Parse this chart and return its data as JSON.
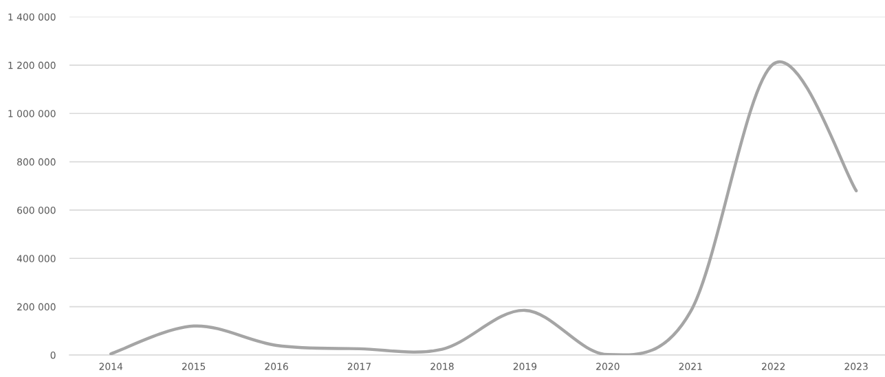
{
  "chart_data": {
    "type": "line",
    "categories": [
      "2014",
      "2015",
      "2016",
      "2017",
      "2018",
      "2019",
      "2020",
      "2021",
      "2022",
      "2023"
    ],
    "series": [
      {
        "color": "#a5a5a5",
        "values": [
          5000,
          120000,
          40000,
          26000,
          24000,
          185000,
          2000,
          180000,
          1205000,
          680000
        ]
      }
    ],
    "ylim": [
      0,
      1400000
    ],
    "yticks": [
      0,
      {
        "value": 200000,
        "label": "200 000"
      },
      {
        "value": 400000,
        "label": "400 000"
      },
      {
        "value": 600000,
        "label": "600 000"
      },
      {
        "value": 800000,
        "label": "800 000"
      },
      {
        "value": 1000000,
        "label": "1 000 000"
      },
      {
        "value": 1200000,
        "label": "1 200 000"
      },
      {
        "value": 1400000,
        "label": "1 400 000"
      }
    ],
    "grid": "y",
    "legend": false,
    "marker": "none",
    "line_style": "solid"
  }
}
